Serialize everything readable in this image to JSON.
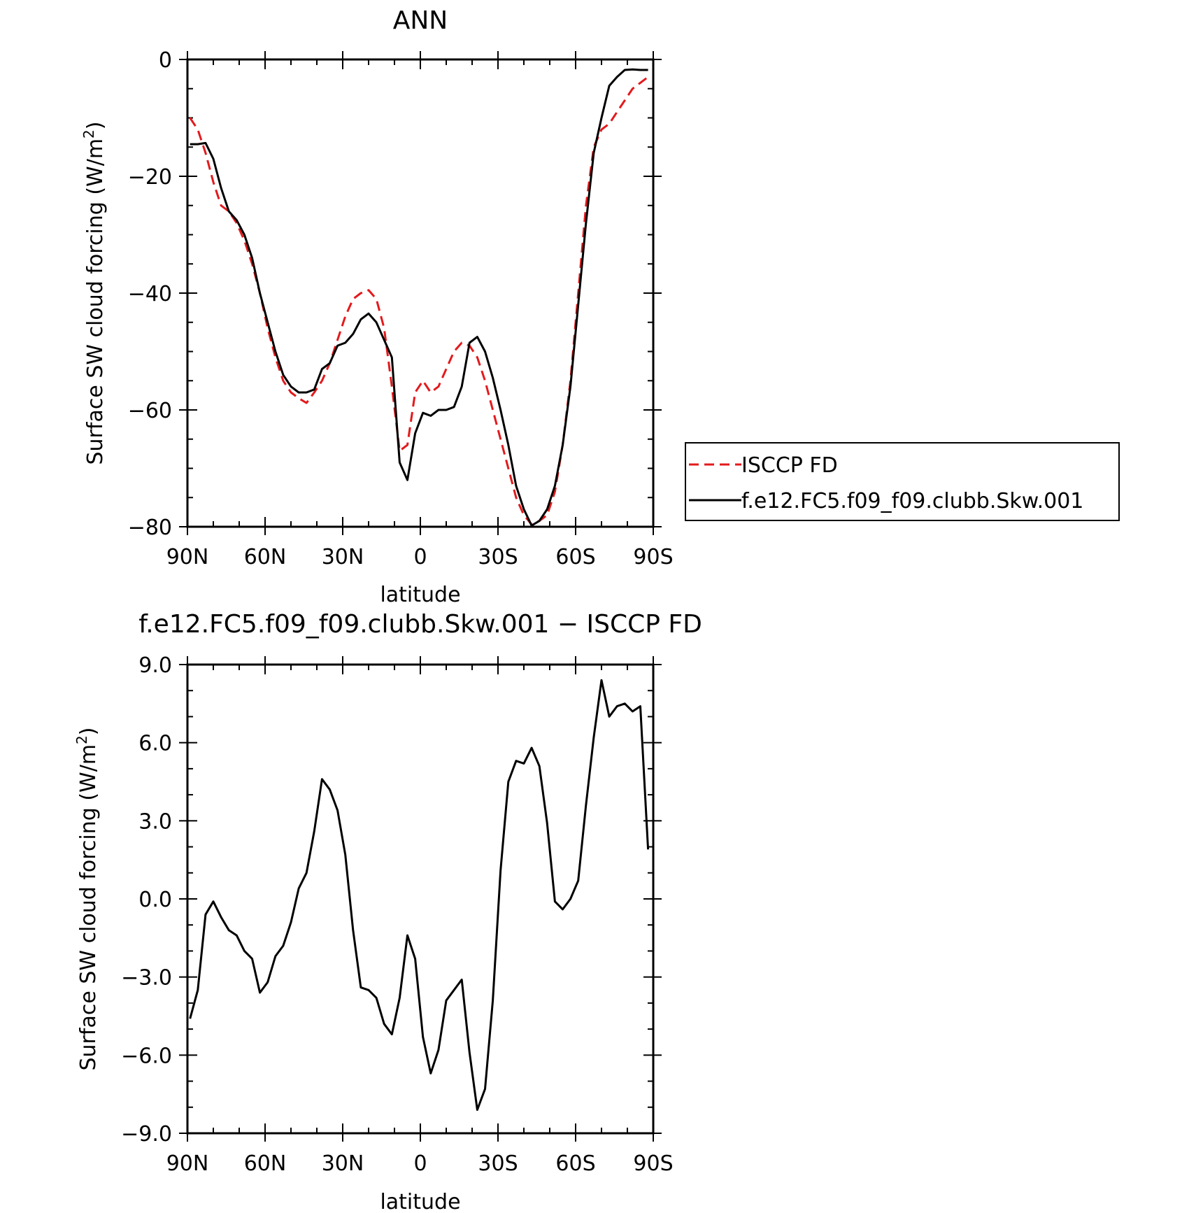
{
  "chart_data": [
    {
      "type": "line",
      "title": "ANN",
      "xlabel": "latitude",
      "ylabel": "Surface SW cloud forcing (W/m",
      "ylabel_sup": "2",
      "ylabel_end": ")",
      "xlim": [
        90,
        -90
      ],
      "ylim": [
        -80,
        0
      ],
      "xticks": [
        {
          "value": 90,
          "label": "90N"
        },
        {
          "value": 60,
          "label": "60N"
        },
        {
          "value": 30,
          "label": "30N"
        },
        {
          "value": 0,
          "label": "0"
        },
        {
          "value": -30,
          "label": "30S"
        },
        {
          "value": -60,
          "label": "60S"
        },
        {
          "value": -90,
          "label": "90S"
        }
      ],
      "yticks": [
        {
          "value": 0,
          "label": "0"
        },
        {
          "value": -20,
          "label": "−20"
        },
        {
          "value": -40,
          "label": "−40"
        },
        {
          "value": -60,
          "label": "−60"
        },
        {
          "value": -80,
          "label": "−80"
        }
      ],
      "legend_position": "right",
      "series": [
        {
          "name": "ISCCP FD",
          "color": "#e31a1c",
          "style": "dashed",
          "x": [
            89,
            86,
            83,
            80,
            77,
            74,
            71,
            68,
            65,
            62,
            59,
            56,
            53,
            50,
            47,
            44,
            41,
            38,
            35,
            32,
            29,
            26,
            23,
            20,
            17,
            14,
            11,
            8,
            5,
            2,
            -1,
            -4,
            -7,
            -10,
            -13,
            -16,
            -19,
            -22,
            -25,
            -28,
            -31,
            -34,
            -37,
            -40,
            -43,
            -46,
            -49,
            -52,
            -55,
            -58,
            -61,
            -64,
            -67,
            -70,
            -73,
            -76,
            -79,
            -82,
            -85,
            -88
          ],
          "y": [
            -10,
            -12,
            -16,
            -21,
            -25,
            -26,
            -28,
            -31,
            -35,
            -40,
            -46,
            -51,
            -55,
            -57,
            -58,
            -58.8,
            -57,
            -55,
            -52,
            -48,
            -44,
            -41,
            -40,
            -39.5,
            -41,
            -46,
            -56,
            -67,
            -66,
            -57,
            -55,
            -57,
            -56,
            -53,
            -50,
            -48.5,
            -49,
            -51,
            -55,
            -60,
            -65,
            -70,
            -75,
            -78,
            -79.6,
            -79,
            -78,
            -74,
            -66,
            -55,
            -40,
            -25,
            -15,
            -12,
            -11,
            -9,
            -7,
            -5,
            -4,
            -3
          ]
        },
        {
          "name": "f.e12.FC5.f09_f09.clubb.Skw.001",
          "color": "#000000",
          "style": "solid",
          "x": [
            89,
            86,
            83,
            80,
            77,
            74,
            71,
            68,
            65,
            62,
            59,
            56,
            53,
            50,
            47,
            44,
            41,
            38,
            35,
            32,
            29,
            26,
            23,
            20,
            17,
            14,
            11,
            8,
            5,
            2,
            -1,
            -4,
            -7,
            -10,
            -13,
            -16,
            -19,
            -22,
            -25,
            -28,
            -31,
            -34,
            -37,
            -40,
            -43,
            -46,
            -49,
            -52,
            -55,
            -58,
            -61,
            -64,
            -67,
            -70,
            -73,
            -76,
            -79,
            -82,
            -85,
            -88
          ],
          "y": [
            -14.5,
            -14.5,
            -14.3,
            -17,
            -22,
            -26,
            -27.5,
            -30,
            -34,
            -40,
            -45,
            -50,
            -54,
            -56,
            -57,
            -57,
            -56.5,
            -53,
            -52,
            -49,
            -48.5,
            -47,
            -44.5,
            -43.5,
            -45,
            -48,
            -51,
            -69,
            -72,
            -64,
            -60.5,
            -61,
            -60,
            -60,
            -59.5,
            -56,
            -48.5,
            -47.5,
            -50,
            -54.5,
            -60,
            -66,
            -73,
            -77,
            -79.8,
            -79,
            -77,
            -73,
            -66,
            -56,
            -42,
            -28,
            -16,
            -10,
            -4.5,
            -3,
            -1.8,
            -1.7,
            -1.8,
            -1.8
          ]
        }
      ]
    },
    {
      "type": "line",
      "title": "f.e12.FC5.f09_f09.clubb.Skw.001 − ISCCP FD",
      "xlabel": "latitude",
      "ylabel": "Surface SW cloud forcing (W/m",
      "ylabel_sup": "2",
      "ylabel_end": ")",
      "xlim": [
        90,
        -90
      ],
      "ylim": [
        -9,
        9
      ],
      "xticks": [
        {
          "value": 90,
          "label": "90N"
        },
        {
          "value": 60,
          "label": "60N"
        },
        {
          "value": 30,
          "label": "30N"
        },
        {
          "value": 0,
          "label": "0"
        },
        {
          "value": -30,
          "label": "30S"
        },
        {
          "value": -60,
          "label": "60S"
        },
        {
          "value": -90,
          "label": "90S"
        }
      ],
      "yticks": [
        {
          "value": 9,
          "label": "9.0"
        },
        {
          "value": 6,
          "label": "6.0"
        },
        {
          "value": 3,
          "label": "3.0"
        },
        {
          "value": 0,
          "label": "0.0"
        },
        {
          "value": -3,
          "label": "−3.0"
        },
        {
          "value": -6,
          "label": "−6.0"
        },
        {
          "value": -9,
          "label": "−9.0"
        }
      ],
      "series": [
        {
          "color": "#000000",
          "style": "solid",
          "x": [
            89,
            86,
            83,
            80,
            77,
            74,
            71,
            68,
            65,
            62,
            59,
            56,
            53,
            50,
            47,
            44,
            41,
            38,
            35,
            32,
            29,
            26,
            23,
            20,
            17,
            14,
            11,
            8,
            5,
            2,
            -1,
            -4,
            -7,
            -10,
            -13,
            -16,
            -19,
            -22,
            -25,
            -28,
            -31,
            -34,
            -37,
            -40,
            -43,
            -46,
            -49,
            -52,
            -55,
            -58,
            -61,
            -64,
            -67,
            -70,
            -73,
            -76,
            -79,
            -82,
            -85,
            -88
          ],
          "y": [
            -4.6,
            -3.5,
            -0.6,
            -0.1,
            -0.7,
            -1.2,
            -1.4,
            -2,
            -2.3,
            -3.6,
            -3.2,
            -2.2,
            -1.8,
            -0.9,
            0.4,
            1,
            2.6,
            4.6,
            4.2,
            3.4,
            1.7,
            -1.2,
            -3.4,
            -3.5,
            -3.8,
            -4.8,
            -5.2,
            -3.8,
            -1.4,
            -2.3,
            -5.3,
            -6.7,
            -5.8,
            -3.9,
            -3.5,
            -3.1,
            -5.9,
            -8.1,
            -7.3,
            -3.9,
            1.1,
            4.5,
            5.3,
            5.2,
            5.8,
            5.1,
            2.9,
            -0.1,
            -0.4,
            0,
            0.7,
            3.6,
            6.2,
            8.4,
            7,
            7.4,
            7.5,
            7.2,
            7.4,
            1.9
          ]
        }
      ]
    }
  ]
}
